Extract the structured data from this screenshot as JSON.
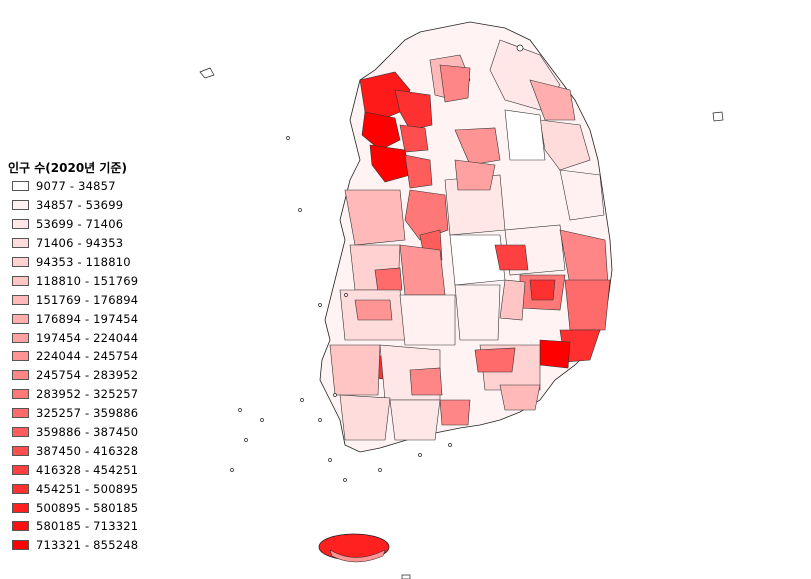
{
  "legend": {
    "title": "인구 수(2020년 기준)",
    "items": [
      {
        "label": "9077 - 34857",
        "color": "#ffffff"
      },
      {
        "label": "34857 - 53699",
        "color": "#fff1f1"
      },
      {
        "label": "53699 - 71406",
        "color": "#ffe7e7"
      },
      {
        "label": "71406 - 94353",
        "color": "#ffdcdc"
      },
      {
        "label": "94353 - 118810",
        "color": "#ffd1d1"
      },
      {
        "label": "118810 - 151769",
        "color": "#ffc5c5"
      },
      {
        "label": "151769 - 176894",
        "color": "#ffb9b9"
      },
      {
        "label": "176894 - 197454",
        "color": "#ffadad"
      },
      {
        "label": "197454 - 224044",
        "color": "#ffa1a1"
      },
      {
        "label": "224044 - 245754",
        "color": "#ff9494"
      },
      {
        "label": "245754 - 283952",
        "color": "#ff8686"
      },
      {
        "label": "283952 - 325257",
        "color": "#ff7878"
      },
      {
        "label": "325257 - 359886",
        "color": "#ff6a6a"
      },
      {
        "label": "359886 - 387450",
        "color": "#ff5c5c"
      },
      {
        "label": "387450 - 416328",
        "color": "#ff4e4e"
      },
      {
        "label": "416328 - 454251",
        "color": "#ff4040"
      },
      {
        "label": "454251 - 500895",
        "color": "#ff3030"
      },
      {
        "label": "500895 - 580185",
        "color": "#ff2020"
      },
      {
        "label": "580185 - 713321",
        "color": "#ff1010"
      },
      {
        "label": "713321 - 855248",
        "color": "#ff0000"
      }
    ]
  }
}
